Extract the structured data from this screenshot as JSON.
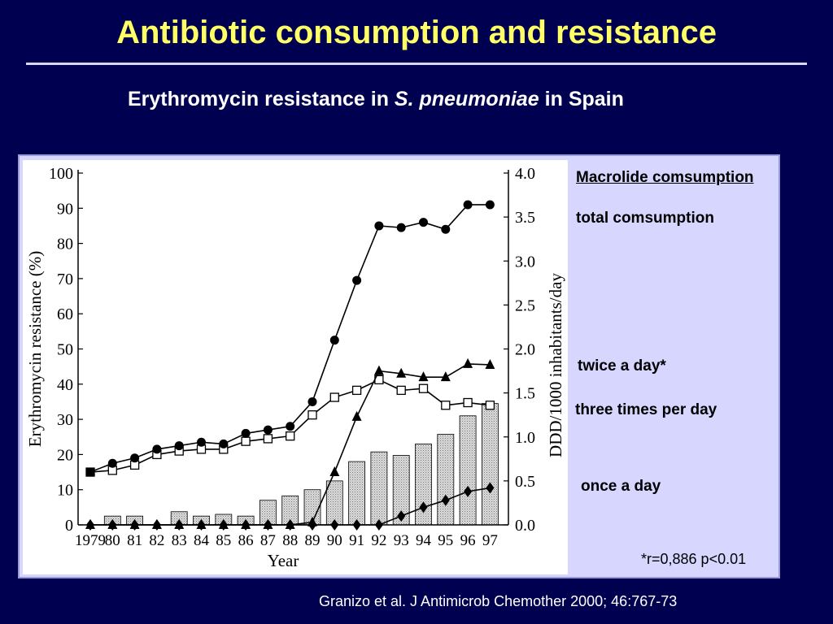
{
  "slide": {
    "title": "Antibiotic consumption and resistance",
    "subtitle_part1": "Erythromycin resistance in ",
    "subtitle_species": "S. pneumoniae",
    "subtitle_part2": " in Spain",
    "citation": "Granizo et al. J Antimicrob Chemother 2000; 46:767-73"
  },
  "legend": {
    "heading": "Macrolide comsumption",
    "total": "total comsumption",
    "twice": "twice a day*",
    "three": "three times per day",
    "once": "once a day",
    "note": "*r=0,886 p<0.01"
  },
  "colors": {
    "background": "#000050",
    "title": "#ffff66",
    "panel": "#d6d6ff",
    "bar_fill": "#dcdcdc"
  },
  "chart_data": {
    "type": "line",
    "xlabel": "Year",
    "ylabel_left": "Erythromycin resistance (%)",
    "ylabel_right": "DDD/1000 inhabitants/day",
    "categories": [
      "1979",
      "80",
      "81",
      "82",
      "83",
      "84",
      "85",
      "86",
      "87",
      "88",
      "89",
      "90",
      "91",
      "92",
      "93",
      "94",
      "95",
      "96",
      "97"
    ],
    "y_left_range": [
      0,
      100
    ],
    "y_left_ticks": [
      "0",
      "10",
      "20",
      "30",
      "40",
      "50",
      "60",
      "70",
      "80",
      "90",
      "100"
    ],
    "y_right_range": [
      0,
      4.0
    ],
    "y_right_ticks": [
      "0.0",
      "0.5",
      "1.0",
      "1.5",
      "2.0",
      "2.5",
      "3.0",
      "3.5",
      "4.0"
    ],
    "resistance": {
      "axis": "left",
      "marker": "filled-circle",
      "values": [
        15,
        17.5,
        19,
        21.5,
        22.5,
        23.5,
        23,
        26,
        27,
        28,
        35,
        52.5,
        69.5,
        85,
        84.5,
        86,
        84,
        91,
        91
      ]
    },
    "total_consumption": {
      "axis": "right",
      "marker": "open-square",
      "values": [
        0.6,
        0.62,
        0.68,
        0.8,
        0.84,
        0.86,
        0.86,
        0.95,
        0.98,
        1.01,
        1.25,
        1.45,
        1.53,
        1.65,
        1.53,
        1.55,
        1.36,
        1.39,
        1.36
      ]
    },
    "twice_a_day": {
      "axis": "right",
      "marker": "filled-triangle",
      "values": [
        0,
        0,
        0,
        0,
        0,
        0,
        0,
        0,
        0,
        0,
        0.03,
        0.6,
        1.23,
        1.75,
        1.72,
        1.68,
        1.68,
        1.83,
        1.82
      ]
    },
    "three_times_per_day": {
      "axis": "right",
      "marker": "bar",
      "values": [
        0,
        0.1,
        0.1,
        0,
        0.15,
        0.1,
        0.12,
        0.1,
        0.28,
        0.33,
        0.4,
        0.5,
        0.72,
        0.83,
        0.79,
        0.92,
        1.03,
        1.24,
        1.38
      ]
    },
    "once_a_day": {
      "axis": "right",
      "marker": "filled-diamond",
      "values": [
        0,
        0,
        0,
        0,
        0,
        0,
        0,
        0,
        0,
        0,
        0,
        0,
        0,
        0,
        0.1,
        0.2,
        0.28,
        0.38,
        0.42
      ]
    }
  }
}
